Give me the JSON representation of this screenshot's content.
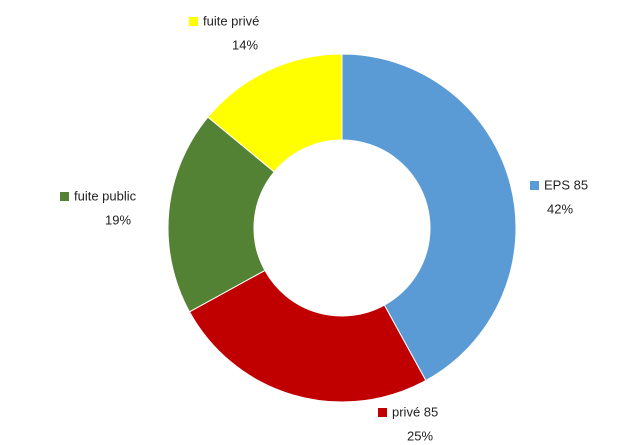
{
  "chart_data": {
    "type": "donut",
    "categories": [
      "EPS 85",
      "privé 85",
      "fuite public",
      "fuite privé"
    ],
    "values": [
      42,
      25,
      19,
      14
    ],
    "value_labels": [
      "42%",
      "25%",
      "19%",
      "14%"
    ],
    "colors": [
      "#5b9bd5",
      "#c00000",
      "#548235",
      "#ffff00"
    ]
  }
}
